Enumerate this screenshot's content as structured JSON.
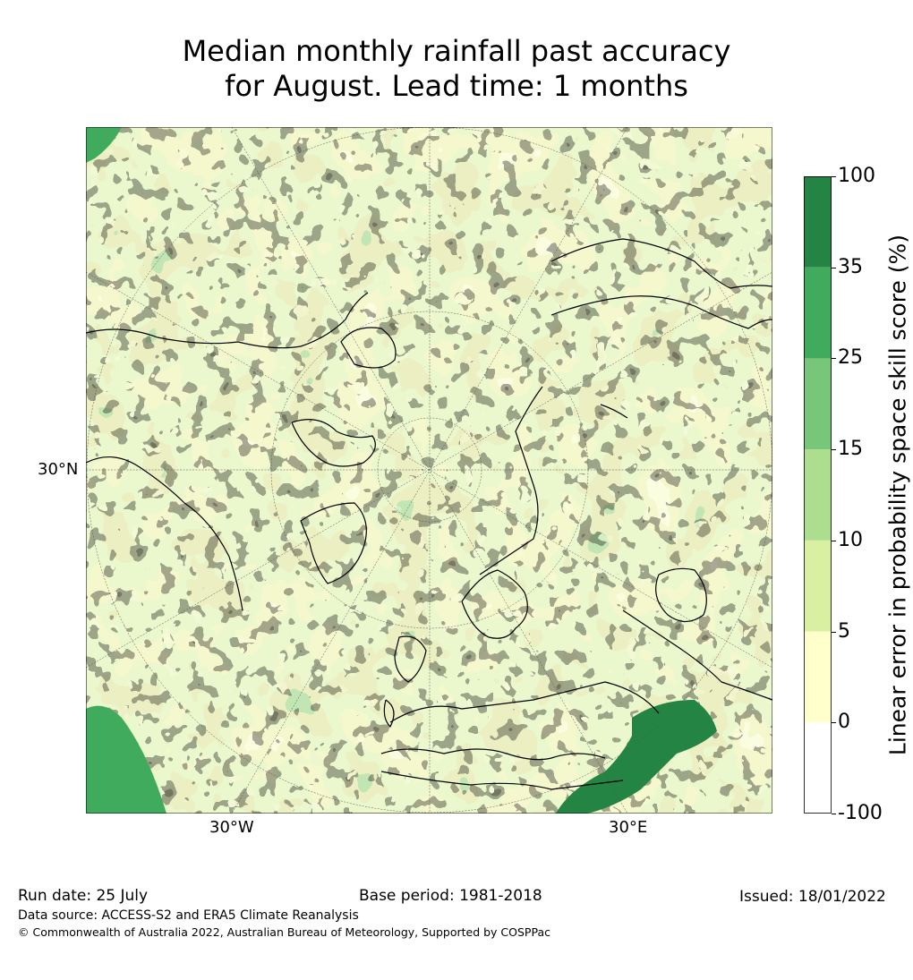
{
  "title": {
    "line1": "Median monthly rainfall past accuracy",
    "line2": "for August. Lead time: 1 months"
  },
  "map": {
    "projection": "north-polar-stereographic",
    "graticule_labels": {
      "left": "30°N",
      "bottom_west": "30°W",
      "bottom_east": "30°E"
    },
    "background_color": "#d9efa3"
  },
  "colorbar": {
    "title": "Linear error in probability space skill score (%)",
    "bins": [
      {
        "from": "-100",
        "to": "0",
        "color": "#ffffff"
      },
      {
        "from": "0",
        "to": "5",
        "color": "#ffffcc"
      },
      {
        "from": "5",
        "to": "10",
        "color": "#d9f0a3"
      },
      {
        "from": "10",
        "to": "15",
        "color": "#addd8e"
      },
      {
        "from": "15",
        "to": "25",
        "color": "#78c679"
      },
      {
        "from": "25",
        "to": "35",
        "color": "#41ab5d"
      },
      {
        "from": "35",
        "to": "100",
        "color": "#238443"
      }
    ],
    "ticks": [
      "100",
      "35",
      "25",
      "15",
      "10",
      "5",
      "0",
      "-100"
    ]
  },
  "footer": {
    "run_date": "Run date: 25 July",
    "base_period": "Base period: 1981-2018",
    "issued": "Issued: 18/01/2022",
    "data_source": "Data source: ACCESS-S2 and ERA5 Climate Reanalysis",
    "copyright": "© Commonwealth of Australia 2022, Australian Bureau of Meteorology, Supported by COSPPac"
  }
}
